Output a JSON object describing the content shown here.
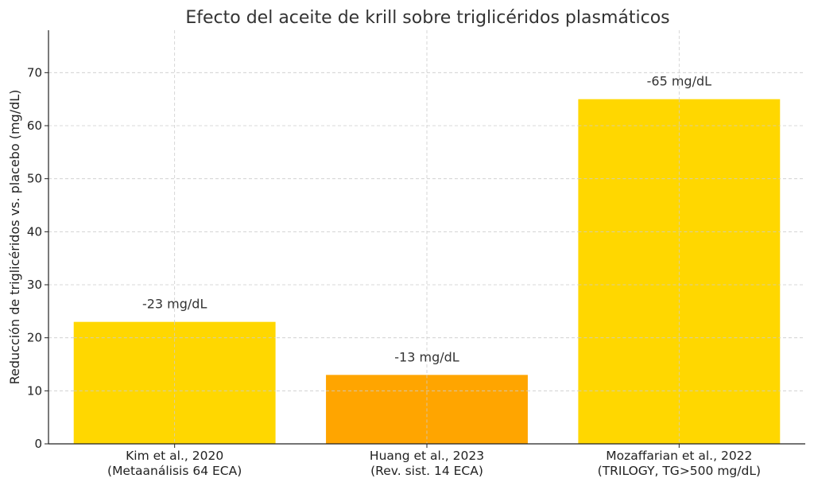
{
  "chart_data": {
    "type": "bar",
    "title": "Efecto del aceite de krill sobre triglicéridos plasmáticos",
    "xlabel": "",
    "ylabel": "Reducción de triglicéridos vs. placebo (mg/dL)",
    "ylim": [
      0,
      78
    ],
    "yticks": [
      0,
      10,
      20,
      30,
      40,
      50,
      60,
      70
    ],
    "grid": true,
    "categories": [
      [
        "Kim et al., 2020",
        "(Metaanálisis 64 ECA)"
      ],
      [
        "Huang et al., 2023",
        "(Rev. sist. 14 ECA)"
      ],
      [
        "Mozaffarian et al., 2022",
        "(TRILOGY, TG>500 mg/dL)"
      ]
    ],
    "values": [
      23,
      13,
      65
    ],
    "data_labels": [
      "-23 mg/dL",
      "-13 mg/dL",
      "-65 mg/dL"
    ],
    "colors": [
      "#FFD700",
      "#FFA500",
      "#FFD700"
    ]
  }
}
